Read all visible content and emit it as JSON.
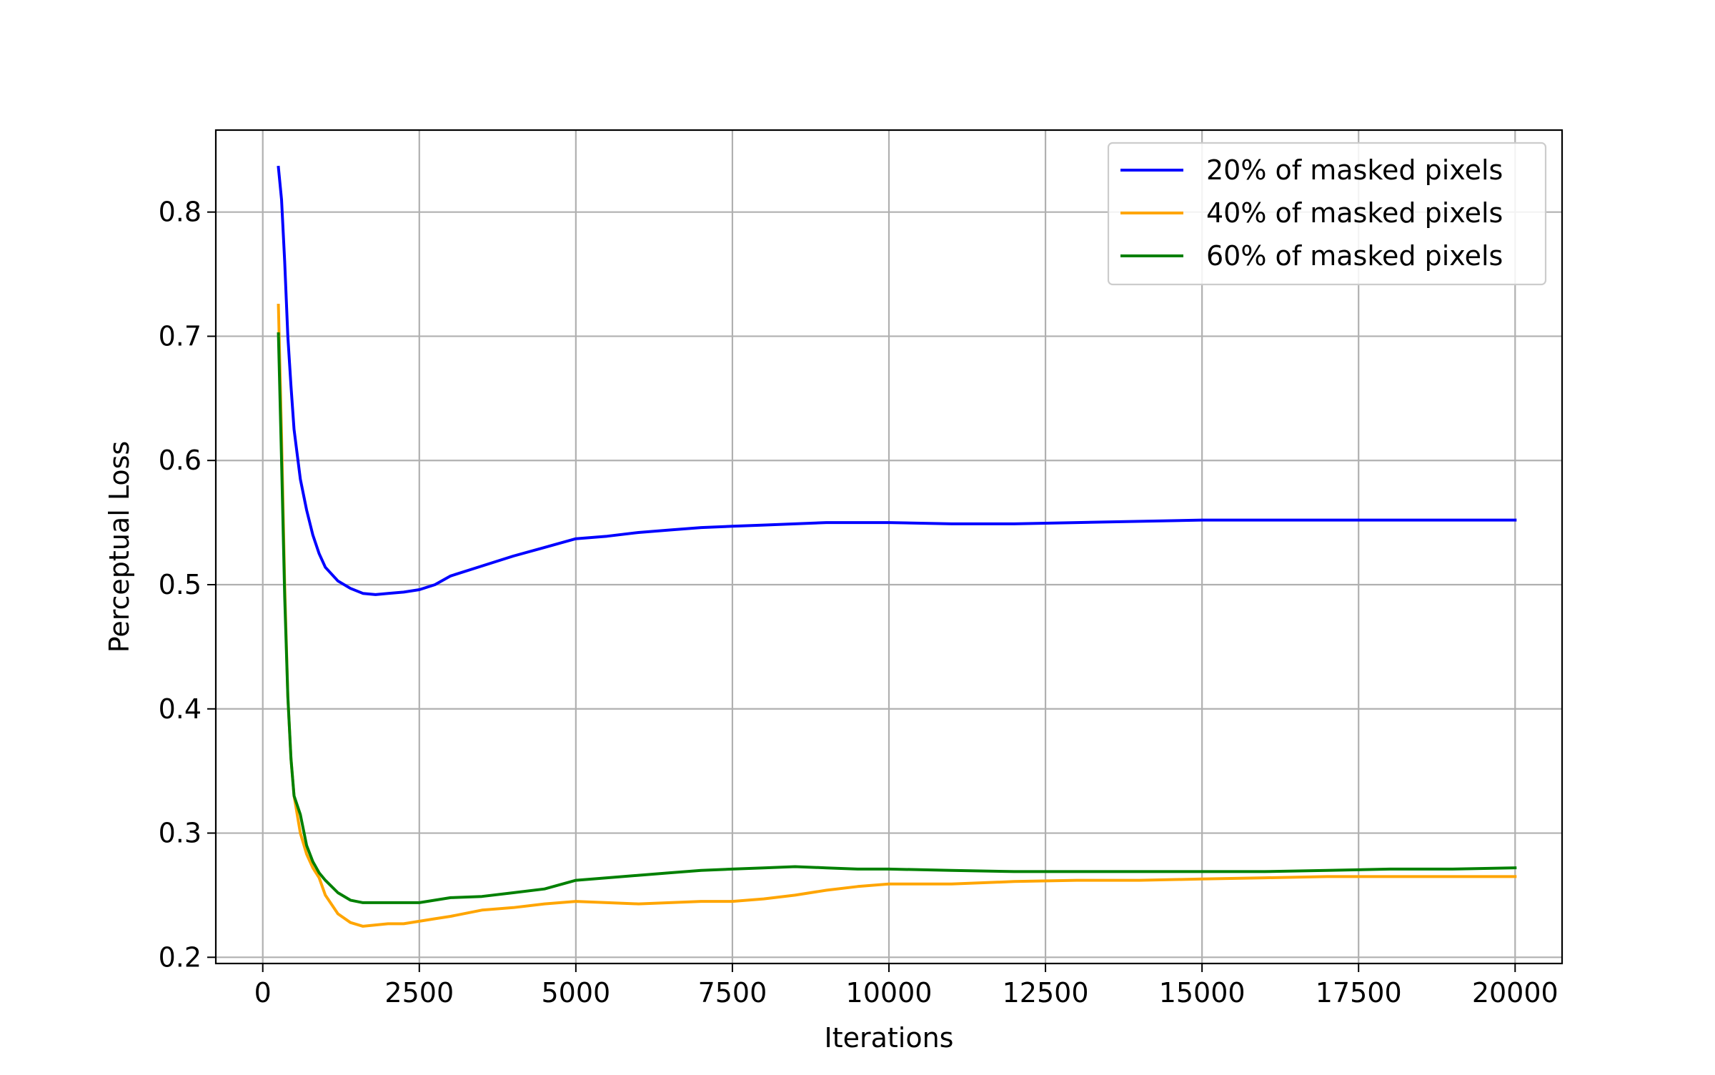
{
  "chart_data": {
    "type": "line",
    "title": "",
    "xlabel": "Iterations",
    "ylabel": "Perceptual Loss",
    "xlim": [
      -750,
      20750
    ],
    "ylim": [
      0.195,
      0.866
    ],
    "xticks": [
      0,
      2500,
      5000,
      7500,
      10000,
      12500,
      15000,
      17500,
      20000
    ],
    "xtick_labels": [
      "0",
      "2500",
      "5000",
      "7500",
      "10000",
      "12500",
      "15000",
      "17500",
      "20000"
    ],
    "yticks": [
      0.2,
      0.3,
      0.4,
      0.5,
      0.6,
      0.7,
      0.8
    ],
    "ytick_labels": [
      "0.2",
      "0.3",
      "0.4",
      "0.5",
      "0.6",
      "0.7",
      "0.8"
    ],
    "grid": true,
    "legend_position": "top-right",
    "series": [
      {
        "name": "20% of masked pixels",
        "color": "#0000ff",
        "x": [
          250,
          300,
          350,
          400,
          450,
          500,
          600,
          700,
          800,
          900,
          1000,
          1200,
          1400,
          1600,
          1800,
          2000,
          2250,
          2500,
          2750,
          3000,
          3500,
          4000,
          4500,
          5000,
          5500,
          6000,
          6500,
          7000,
          7500,
          8000,
          8500,
          9000,
          9500,
          10000,
          11000,
          12000,
          13000,
          14000,
          15000,
          16000,
          17000,
          18000,
          19000,
          20000
        ],
        "y": [
          0.836,
          0.81,
          0.76,
          0.7,
          0.66,
          0.625,
          0.585,
          0.56,
          0.54,
          0.525,
          0.514,
          0.503,
          0.497,
          0.493,
          0.492,
          0.493,
          0.494,
          0.496,
          0.5,
          0.507,
          0.515,
          0.523,
          0.53,
          0.537,
          0.539,
          0.542,
          0.544,
          0.546,
          0.547,
          0.548,
          0.549,
          0.55,
          0.55,
          0.55,
          0.549,
          0.549,
          0.55,
          0.551,
          0.552,
          0.552,
          0.552,
          0.552,
          0.552,
          0.552
        ]
      },
      {
        "name": "40% of masked pixels",
        "color": "#ffa500",
        "x": [
          250,
          300,
          350,
          400,
          450,
          500,
          600,
          700,
          800,
          900,
          1000,
          1200,
          1400,
          1600,
          1800,
          2000,
          2250,
          2500,
          2750,
          3000,
          3500,
          4000,
          4500,
          5000,
          5500,
          6000,
          6500,
          7000,
          7500,
          8000,
          8500,
          9000,
          9500,
          10000,
          11000,
          12000,
          13000,
          14000,
          15000,
          16000,
          17000,
          18000,
          19000,
          20000
        ],
        "y": [
          0.725,
          0.62,
          0.5,
          0.41,
          0.36,
          0.33,
          0.3,
          0.283,
          0.272,
          0.264,
          0.25,
          0.235,
          0.228,
          0.225,
          0.226,
          0.227,
          0.227,
          0.229,
          0.231,
          0.233,
          0.238,
          0.24,
          0.243,
          0.245,
          0.244,
          0.243,
          0.244,
          0.245,
          0.245,
          0.247,
          0.25,
          0.254,
          0.257,
          0.259,
          0.259,
          0.261,
          0.262,
          0.262,
          0.263,
          0.264,
          0.265,
          0.265,
          0.265,
          0.265
        ]
      },
      {
        "name": "60% of masked pixels",
        "color": "#008000",
        "x": [
          250,
          300,
          350,
          400,
          450,
          500,
          600,
          700,
          800,
          900,
          1000,
          1200,
          1400,
          1600,
          1800,
          2000,
          2250,
          2500,
          2750,
          3000,
          3500,
          4000,
          4500,
          5000,
          5500,
          6000,
          6500,
          7000,
          7500,
          8000,
          8500,
          9000,
          9500,
          10000,
          11000,
          12000,
          13000,
          14000,
          15000,
          16000,
          17000,
          18000,
          19000,
          20000
        ],
        "y": [
          0.702,
          0.6,
          0.49,
          0.41,
          0.36,
          0.33,
          0.315,
          0.29,
          0.277,
          0.268,
          0.262,
          0.252,
          0.246,
          0.244,
          0.244,
          0.244,
          0.244,
          0.244,
          0.246,
          0.248,
          0.249,
          0.252,
          0.255,
          0.262,
          0.264,
          0.266,
          0.268,
          0.27,
          0.271,
          0.272,
          0.273,
          0.272,
          0.271,
          0.271,
          0.27,
          0.269,
          0.269,
          0.269,
          0.269,
          0.269,
          0.27,
          0.271,
          0.271,
          0.272
        ]
      }
    ]
  }
}
